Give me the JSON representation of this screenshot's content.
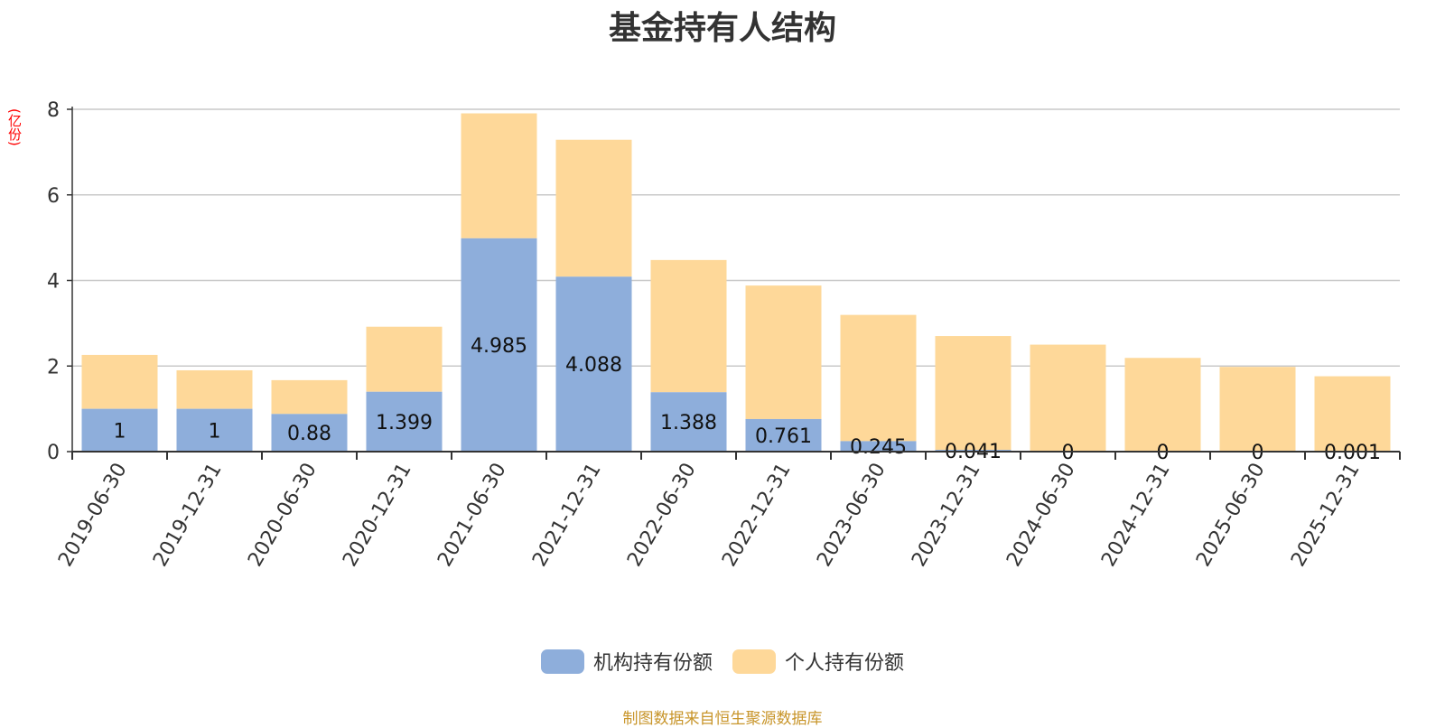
{
  "chart_data": {
    "type": "bar",
    "stacked": true,
    "title": "基金持有人结构",
    "unit_label": "(亿份)",
    "categories": [
      "2019-06-30",
      "2019-12-31",
      "2020-06-30",
      "2020-12-31",
      "2021-06-30",
      "2021-12-31",
      "2022-06-30",
      "2022-12-31",
      "2023-06-30",
      "2023-12-31",
      "2024-06-30",
      "2024-12-31",
      "2025-06-30",
      "2025-12-31"
    ],
    "series": [
      {
        "name": "机构持有份额",
        "color": "#8eaedb",
        "values": [
          1,
          1,
          0.88,
          1.399,
          4.985,
          4.088,
          1.388,
          0.761,
          0.245,
          0.041,
          0,
          0,
          0,
          0.001
        ],
        "labels": [
          "1",
          "1",
          "0.88",
          "1.399",
          "4.985",
          "4.088",
          "1.388",
          "0.761",
          "0.245",
          "0.041",
          "0",
          "0",
          "0",
          "0.001"
        ]
      },
      {
        "name": "个人持有份额",
        "color": "#fed899",
        "values": [
          1.26,
          0.9,
          0.79,
          1.52,
          2.92,
          3.2,
          3.09,
          3.12,
          2.95,
          2.66,
          2.5,
          2.19,
          1.98,
          1.76
        ]
      }
    ],
    "ylim": [
      0,
      8
    ],
    "yticks": [
      0,
      2,
      4,
      6,
      8
    ],
    "grid": true,
    "legend_position": "bottom"
  },
  "source_note": "制图数据来自恒生聚源数据库"
}
